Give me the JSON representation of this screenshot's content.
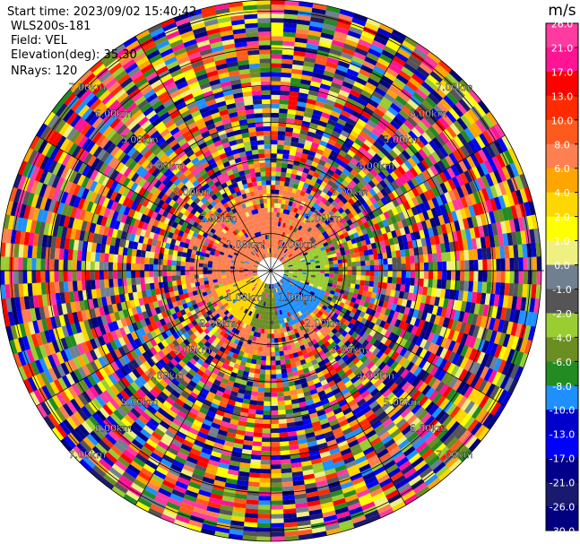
{
  "info": {
    "start_time": "Start time: 2023/09/02 15:40:42",
    "instrument": "WLS200s-181",
    "field": "Field: VEL",
    "elevation": "Elevation(deg): 35.30",
    "nrays": "NRays: 120"
  },
  "chart_data": {
    "type": "heatmap",
    "subtype": "polar-ppi",
    "field": "VEL",
    "units": "m/s",
    "n_rays": 120,
    "elevation_deg": 35.3,
    "range_ring_labels": [
      "1.00km",
      "2.00km",
      "3.00km",
      "4.00km",
      "5.00km",
      "6.00km",
      "7.00km"
    ],
    "range_rings_km": [
      1,
      2,
      3,
      4,
      5,
      6,
      7
    ],
    "colorbar": {
      "label": "m/s",
      "tick_labels": [
        "26.0",
        "21.0",
        "17.0",
        "13.0",
        "10.0",
        "8.0",
        "6.0",
        "4.0",
        "2.0",
        "1.0",
        "0.0",
        "-1.0",
        "-2.0",
        "-4.0",
        "-6.0",
        "-8.0",
        "-10.0",
        "-13.0",
        "-17.0",
        "-21.0",
        "-26.0",
        "-30.0"
      ],
      "colors": [
        "#ff3aa0",
        "#ff1493",
        "#ff0000",
        "#ff2a00",
        "#ff5a1e",
        "#ff7f50",
        "#ffa500",
        "#ffd700",
        "#ffff00",
        "#f0f080",
        "#708090",
        "#555555",
        "#9acd32",
        "#6b8e23",
        "#228b22",
        "#1e90ff",
        "#0000cd",
        "#0000ff",
        "#00008b",
        "#191970",
        "#000080"
      ]
    },
    "grid": true
  }
}
